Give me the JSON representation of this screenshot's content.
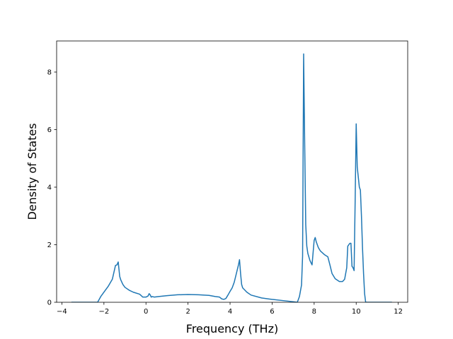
{
  "chart_data": {
    "type": "line",
    "xlabel": "Frequency (THz)",
    "ylabel": "Density of States",
    "xlim": [
      -4.25,
      12.45
    ],
    "ylim": [
      0,
      9.08
    ],
    "xticks": [
      -4,
      -2,
      0,
      2,
      4,
      6,
      8,
      10,
      12
    ],
    "yticks": [
      0,
      2,
      4,
      6,
      8
    ],
    "grid": false,
    "legend": "none",
    "series": [
      {
        "color": "#1f77b4",
        "x": [
          -3.55,
          -2.3,
          -2.15,
          -2.0,
          -1.8,
          -1.6,
          -1.45,
          -1.38,
          -1.32,
          -1.25,
          -1.2,
          -1.1,
          -1.0,
          -0.8,
          -0.6,
          -0.3,
          -0.15,
          0.0,
          0.1,
          0.15,
          0.2,
          0.25,
          0.3,
          0.4,
          0.6,
          1.0,
          1.5,
          2.0,
          2.5,
          3.0,
          3.3,
          3.5,
          3.6,
          3.7,
          3.8,
          3.9,
          4.0,
          4.1,
          4.2,
          4.3,
          4.4,
          4.45,
          4.5,
          4.55,
          4.6,
          4.8,
          5.0,
          5.5,
          6.0,
          6.5,
          7.0,
          7.2,
          7.3,
          7.4,
          7.45,
          7.5,
          7.55,
          7.6,
          7.65,
          7.7,
          7.8,
          7.9,
          8.0,
          8.05,
          8.1,
          8.2,
          8.3,
          8.5,
          8.65,
          8.75,
          8.85,
          9.0,
          9.2,
          9.35,
          9.45,
          9.55,
          9.6,
          9.7,
          9.75,
          9.8,
          9.85,
          9.9,
          9.95,
          10.0,
          10.05,
          10.1,
          10.15,
          10.2,
          10.25,
          10.3,
          10.35,
          10.4,
          10.45,
          10.5,
          11.0,
          11.7
        ],
        "y": [
          0.0,
          0.0,
          0.2,
          0.35,
          0.55,
          0.8,
          1.28,
          1.3,
          1.4,
          0.9,
          0.78,
          0.62,
          0.52,
          0.42,
          0.35,
          0.28,
          0.18,
          0.18,
          0.22,
          0.3,
          0.26,
          0.18,
          0.2,
          0.18,
          0.2,
          0.23,
          0.26,
          0.27,
          0.26,
          0.24,
          0.2,
          0.18,
          0.12,
          0.1,
          0.13,
          0.25,
          0.38,
          0.5,
          0.7,
          1.0,
          1.3,
          1.48,
          1.0,
          0.62,
          0.5,
          0.35,
          0.25,
          0.15,
          0.1,
          0.06,
          0.02,
          0.0,
          0.2,
          0.6,
          1.6,
          8.63,
          5.5,
          2.7,
          1.95,
          1.7,
          1.45,
          1.3,
          2.15,
          2.25,
          2.1,
          1.9,
          1.78,
          1.65,
          1.58,
          1.3,
          1.0,
          0.82,
          0.72,
          0.72,
          0.8,
          1.2,
          1.95,
          2.05,
          2.05,
          1.25,
          1.2,
          1.1,
          3.5,
          6.2,
          4.7,
          4.35,
          4.0,
          3.9,
          3.0,
          1.9,
          1.0,
          0.3,
          0.0,
          0.0,
          0.0,
          0.0
        ]
      }
    ]
  }
}
